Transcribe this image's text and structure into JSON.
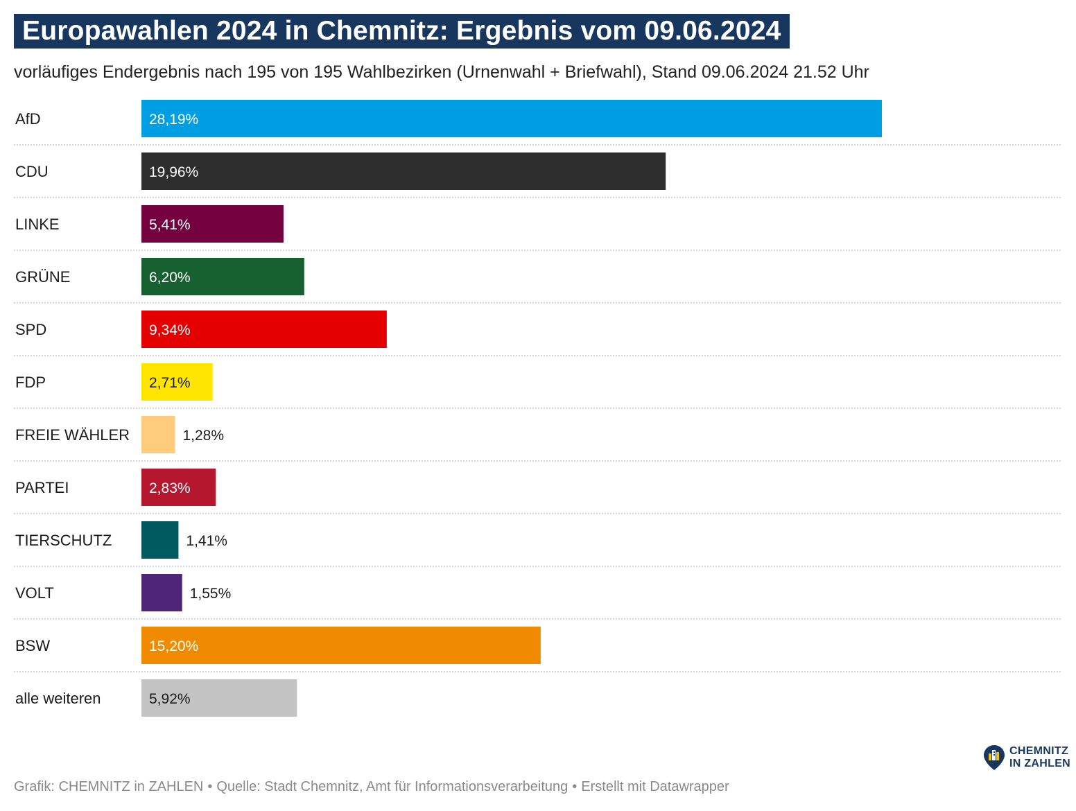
{
  "header": {
    "title": "Europawahlen 2024 in Chemnitz: Ergebnis vom 09.06.2024",
    "subtitle": "vorläufiges Endergebnis nach 195 von 195 Wahlbezirken (Urnenwahl + Briefwahl), Stand 09.06.2024 21.52 Uhr"
  },
  "chart_data": {
    "type": "bar",
    "orientation": "horizontal",
    "categories": [
      "AfD",
      "CDU",
      "LINKE",
      "GRÜNE",
      "SPD",
      "FDP",
      "FREIE WÄHLER",
      "PARTEI",
      "TIERSCHUTZ",
      "VOLT",
      "BSW",
      "alle weiteren"
    ],
    "values": [
      28.19,
      19.96,
      5.41,
      6.2,
      9.34,
      2.71,
      1.28,
      2.83,
      1.41,
      1.55,
      15.2,
      5.92
    ],
    "value_labels": [
      "28,19%",
      "19,96%",
      "5,41%",
      "6,20%",
      "9,34%",
      "2,71%",
      "1,28%",
      "2,83%",
      "1,41%",
      "1,55%",
      "15,20%",
      "5,92%"
    ],
    "colors": [
      "#009fe3",
      "#2d2d2d",
      "#75003f",
      "#16612f",
      "#e40000",
      "#ffe500",
      "#fecc7c",
      "#b5172f",
      "#005b61",
      "#4d2677",
      "#f08a00",
      "#c4c4c4"
    ],
    "label_colors": [
      "#ffffff",
      "#ffffff",
      "#ffffff",
      "#ffffff",
      "#ffffff",
      "#1a1a1a",
      "#1a1a1a",
      "#ffffff",
      "#1a1a1a",
      "#1a1a1a",
      "#ffffff",
      "#1a1a1a"
    ],
    "label_position": [
      "inside",
      "inside",
      "inside",
      "inside",
      "inside",
      "inside",
      "outside",
      "inside",
      "outside",
      "outside",
      "inside",
      "inside"
    ],
    "xlim": [
      0,
      28.19
    ],
    "unit": "%",
    "row_separators": "dotted",
    "grid": false,
    "legend": "none"
  },
  "footer": {
    "credit": "Grafik: CHEMNITZ in ZAHLEN",
    "source": "Quelle: Stadt Chemnitz, Amt für Informationsverarbeitung",
    "tool": "Erstellt mit Datawrapper",
    "separator": "•"
  },
  "logo": {
    "line1": "CHEMNITZ",
    "line2": "IN ZAHLEN",
    "icon": "map-pin-city-icon",
    "color": "#17375e"
  }
}
